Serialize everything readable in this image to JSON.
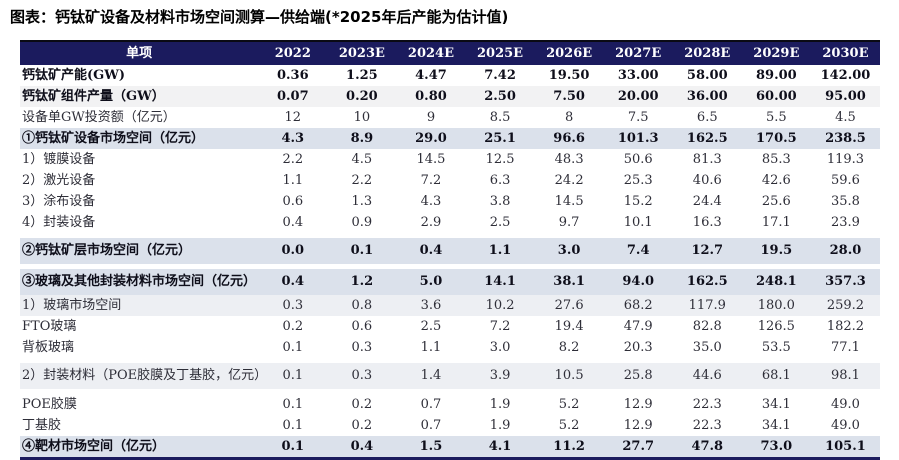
{
  "title": "图表：钙钛矿设备及材料市场空间测算—供给端(*2025年后产能为估计值)",
  "colors": {
    "header_bg": "#1b1b5e",
    "header_text": "#ffffff",
    "section_row_bg": "#dbe1eb",
    "subsection_row_bg": "#edeff3",
    "stripe_row_bg": "#f2f2f3",
    "bottom_border": "#1b1b5e"
  },
  "table": {
    "header": {
      "item_label": "单项",
      "years": [
        "2022",
        "2023E",
        "2024E",
        "2025E",
        "2026E",
        "2027E",
        "2028E",
        "2029E",
        "2030E"
      ]
    },
    "rows": [
      {
        "label": "钙钛矿产能(GW)",
        "values": [
          "0.36",
          "1.25",
          "4.47",
          "7.42",
          "19.50",
          "33.00",
          "58.00",
          "89.00",
          "142.00"
        ],
        "emphasis": "bold",
        "shade": "none",
        "indent": false,
        "gap_before": false,
        "tall": false
      },
      {
        "label": "钙钛矿组件产量（GW）",
        "values": [
          "0.07",
          "0.20",
          "0.80",
          "2.50",
          "7.50",
          "20.00",
          "36.00",
          "60.00",
          "95.00"
        ],
        "emphasis": "bold",
        "shade": "stripe",
        "indent": false,
        "gap_before": false,
        "tall": false
      },
      {
        "label": "设备单GW投资额（亿元）",
        "values": [
          "12",
          "10",
          "9",
          "8.5",
          "8",
          "7.5",
          "6.5",
          "5.5",
          "4.5"
        ],
        "emphasis": "regular",
        "shade": "none",
        "indent": false,
        "gap_before": false,
        "tall": false
      },
      {
        "label": "①钙钛矿设备市场空间（亿元）",
        "values": [
          "4.3",
          "8.9",
          "29.0",
          "25.1",
          "96.6",
          "101.3",
          "162.5",
          "170.5",
          "238.5"
        ],
        "emphasis": "bold",
        "shade": "section",
        "indent": false,
        "gap_before": false,
        "tall": false
      },
      {
        "label": "1）镀膜设备",
        "values": [
          "2.2",
          "4.5",
          "14.5",
          "12.5",
          "48.3",
          "50.6",
          "81.3",
          "85.3",
          "119.3"
        ],
        "emphasis": "regular",
        "shade": "none",
        "indent": false,
        "gap_before": false,
        "tall": false
      },
      {
        "label": "2）激光设备",
        "values": [
          "1.1",
          "2.2",
          "7.2",
          "6.3",
          "24.2",
          "25.3",
          "40.6",
          "42.6",
          "59.6"
        ],
        "emphasis": "regular",
        "shade": "none",
        "indent": false,
        "gap_before": false,
        "tall": false
      },
      {
        "label": "3）涂布设备",
        "values": [
          "0.6",
          "1.3",
          "4.3",
          "3.8",
          "14.5",
          "15.2",
          "24.4",
          "25.6",
          "35.8"
        ],
        "emphasis": "regular",
        "shade": "none",
        "indent": false,
        "gap_before": false,
        "tall": false
      },
      {
        "label": "4）封装设备",
        "values": [
          "0.4",
          "0.9",
          "2.9",
          "2.5",
          "9.7",
          "10.1",
          "16.3",
          "17.1",
          "23.9"
        ],
        "emphasis": "regular",
        "shade": "none",
        "indent": false,
        "gap_before": false,
        "tall": false
      },
      {
        "label": "②钙钛矿层市场空间（亿元）",
        "values": [
          "0.0",
          "0.1",
          "0.4",
          "1.1",
          "3.0",
          "7.4",
          "12.7",
          "19.5",
          "28.0"
        ],
        "emphasis": "bold",
        "shade": "section",
        "indent": false,
        "gap_before": true,
        "tall": true
      },
      {
        "label": "③玻璃及其他封装材料市场空间（亿元）",
        "values": [
          "0.4",
          "1.2",
          "5.0",
          "14.1",
          "38.1",
          "94.0",
          "162.5",
          "248.1",
          "357.3"
        ],
        "emphasis": "bold",
        "shade": "section",
        "indent": false,
        "gap_before": true,
        "tall": true
      },
      {
        "label": "1）玻璃市场空间",
        "values": [
          "0.3",
          "0.8",
          "3.6",
          "10.2",
          "27.6",
          "68.2",
          "117.9",
          "180.0",
          "259.2"
        ],
        "emphasis": "regular",
        "shade": "sub",
        "indent": false,
        "gap_before": false,
        "tall": false
      },
      {
        "label": "FTO玻璃",
        "values": [
          "0.2",
          "0.6",
          "2.5",
          "7.2",
          "19.4",
          "47.9",
          "82.8",
          "126.5",
          "182.2"
        ],
        "emphasis": "regular",
        "shade": "none",
        "indent": true,
        "gap_before": false,
        "tall": false
      },
      {
        "label": "背板玻璃",
        "values": [
          "0.1",
          "0.3",
          "1.1",
          "3.0",
          "8.2",
          "20.3",
          "35.0",
          "53.5",
          "77.1"
        ],
        "emphasis": "regular",
        "shade": "none",
        "indent": true,
        "gap_before": false,
        "tall": false
      },
      {
        "label": "2）封装材料（POE胶膜及丁基胶，亿元）",
        "values": [
          "0.1",
          "0.3",
          "1.4",
          "3.9",
          "10.5",
          "25.8",
          "44.6",
          "68.1",
          "98.1"
        ],
        "emphasis": "regular",
        "shade": "sub",
        "indent": false,
        "gap_before": true,
        "tall": true
      },
      {
        "label": "POE胶膜",
        "values": [
          "0.1",
          "0.2",
          "0.7",
          "1.9",
          "5.2",
          "12.9",
          "22.3",
          "34.1",
          "49.0"
        ],
        "emphasis": "regular",
        "shade": "none",
        "indent": true,
        "gap_before": true,
        "tall": false
      },
      {
        "label": "丁基胶",
        "values": [
          "0.1",
          "0.2",
          "0.7",
          "1.9",
          "5.2",
          "12.9",
          "22.3",
          "34.1",
          "49.0"
        ],
        "emphasis": "regular",
        "shade": "none",
        "indent": true,
        "gap_before": false,
        "tall": false
      },
      {
        "label": "④靶材市场空间（亿元）",
        "values": [
          "0.1",
          "0.4",
          "1.5",
          "4.1",
          "11.2",
          "27.7",
          "47.8",
          "73.0",
          "105.1"
        ],
        "emphasis": "bold",
        "shade": "section",
        "indent": false,
        "gap_before": false,
        "tall": false
      }
    ]
  }
}
